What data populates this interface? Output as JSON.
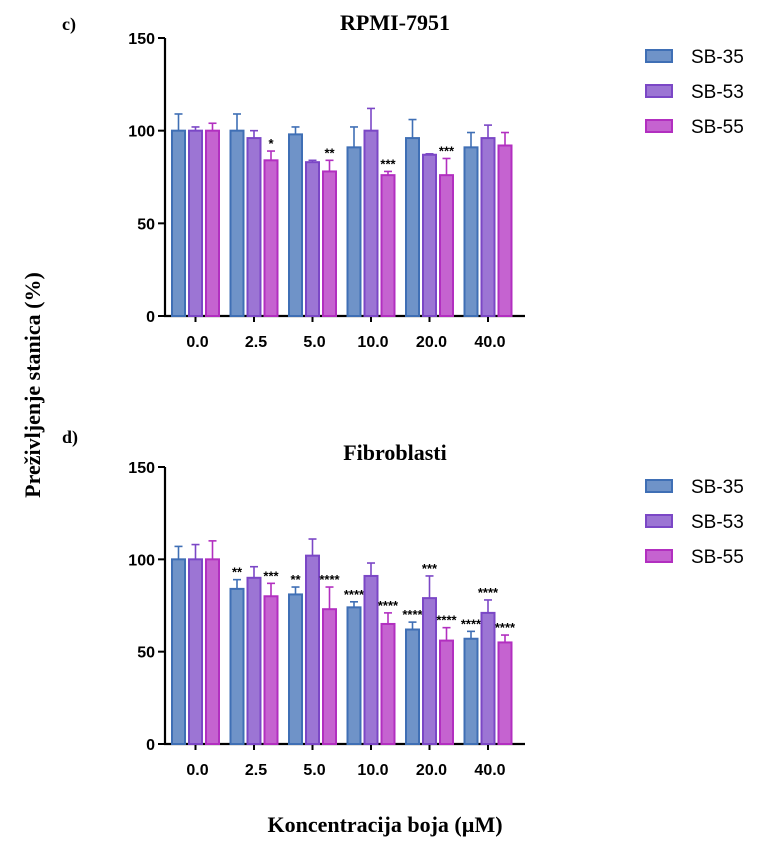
{
  "ylabel": "Preživljenje stanica (%)",
  "xlabel": "Koncentracija boja (µM)",
  "colors": {
    "SB-35": "#3f6fb5",
    "SB-53": "#7b47c6",
    "SB-55": "#b22fc0",
    "axis": "#000000"
  },
  "chart_data": [
    {
      "type": "bar",
      "panel_label": "c)",
      "title": "RPMI-7951",
      "categories": [
        "0.0",
        "2.5",
        "5.0",
        "10.0",
        "20.0",
        "40.0"
      ],
      "ylim": [
        0,
        150
      ],
      "yticks": [
        "0",
        "50",
        "100",
        "150"
      ],
      "legend_position": "right",
      "series": [
        {
          "name": "SB-35",
          "values": [
            100,
            100,
            98,
            91,
            96,
            91
          ],
          "errors": [
            9,
            9,
            4,
            11,
            10,
            8
          ],
          "significance": [
            "",
            "",
            "",
            "",
            "",
            ""
          ]
        },
        {
          "name": "SB-53",
          "values": [
            100,
            96,
            83,
            100,
            87,
            96
          ],
          "errors": [
            2,
            4,
            1,
            12,
            0.5,
            7
          ],
          "significance": [
            "",
            "",
            "",
            "",
            "",
            ""
          ]
        },
        {
          "name": "SB-55",
          "values": [
            100,
            84,
            78,
            76,
            76,
            92
          ],
          "errors": [
            4,
            5,
            6,
            2,
            9,
            7
          ],
          "significance": [
            "",
            "*",
            "**",
            "***",
            "***",
            ""
          ]
        }
      ]
    },
    {
      "type": "bar",
      "panel_label": "d)",
      "title": "Fibroblasti",
      "categories": [
        "0.0",
        "2.5",
        "5.0",
        "10.0",
        "20.0",
        "40.0"
      ],
      "ylim": [
        0,
        150
      ],
      "yticks": [
        "0",
        "50",
        "100",
        "150"
      ],
      "legend_position": "right",
      "series": [
        {
          "name": "SB-35",
          "values": [
            100,
            84,
            81,
            74,
            62,
            57
          ],
          "errors": [
            7,
            5,
            4,
            3,
            4,
            4
          ],
          "significance": [
            "",
            "**",
            "**",
            "****",
            "****",
            "****"
          ]
        },
        {
          "name": "SB-53",
          "values": [
            100,
            90,
            102,
            91,
            79,
            71
          ],
          "errors": [
            8,
            6,
            9,
            7,
            12,
            7
          ],
          "significance": [
            "",
            "",
            "",
            "",
            "***",
            "****"
          ]
        },
        {
          "name": "SB-55",
          "values": [
            100,
            80,
            73,
            65,
            56,
            55
          ],
          "errors": [
            10,
            7,
            12,
            6,
            7,
            4
          ],
          "significance": [
            "",
            "***",
            "****",
            "****",
            "****",
            "****"
          ]
        }
      ]
    }
  ]
}
